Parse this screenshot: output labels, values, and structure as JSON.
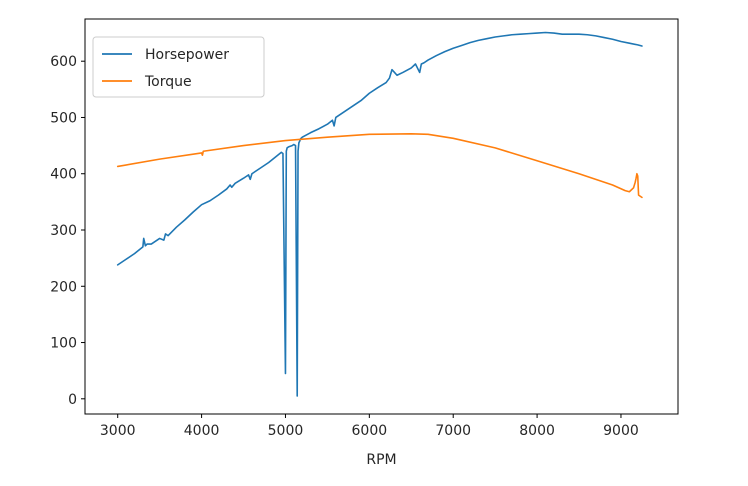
{
  "chart_data": {
    "type": "line",
    "title": "",
    "xlabel": "RPM",
    "ylabel": "",
    "xlim": [
      2610,
      9680
    ],
    "ylim": [
      -27,
      675
    ],
    "xticks": [
      3000,
      4000,
      5000,
      6000,
      7000,
      8000,
      9000
    ],
    "yticks": [
      0,
      100,
      200,
      300,
      400,
      500,
      600
    ],
    "grid": false,
    "legend": "top-left",
    "series": [
      {
        "name": "Horsepower",
        "color": "#1f77b4",
        "x": [
          3000,
          3100,
          3200,
          3300,
          3310,
          3330,
          3350,
          3400,
          3500,
          3550,
          3570,
          3600,
          3700,
          3800,
          3900,
          4000,
          4100,
          4200,
          4300,
          4340,
          4360,
          4400,
          4500,
          4560,
          4580,
          4600,
          4700,
          4800,
          4900,
          4950,
          4970,
          5000,
          5010,
          5020,
          5040,
          5080,
          5100,
          5120,
          5140,
          5150,
          5160,
          5170,
          5180,
          5200,
          5300,
          5400,
          5500,
          5560,
          5580,
          5600,
          5700,
          5800,
          5900,
          6000,
          6100,
          6200,
          6240,
          6270,
          6300,
          6330,
          6400,
          6500,
          6550,
          6600,
          6620,
          6650,
          6700,
          6800,
          6900,
          7000,
          7100,
          7200,
          7300,
          7400,
          7500,
          7600,
          7700,
          7800,
          7900,
          8000,
          8100,
          8200,
          8300,
          8400,
          8500,
          8600,
          8700,
          8800,
          8900,
          9000,
          9100,
          9200,
          9250
        ],
        "y": [
          238,
          248,
          258,
          270,
          285,
          272,
          275,
          275,
          285,
          282,
          293,
          290,
          305,
          318,
          332,
          345,
          352,
          362,
          373,
          380,
          376,
          383,
          392,
          398,
          390,
          400,
          410,
          420,
          432,
          438,
          436,
          45,
          440,
          446,
          448,
          450,
          452,
          450,
          5,
          440,
          455,
          458,
          462,
          465,
          473,
          480,
          488,
          495,
          485,
          500,
          510,
          520,
          530,
          543,
          553,
          562,
          570,
          585,
          580,
          575,
          580,
          588,
          595,
          580,
          595,
          597,
          602,
          610,
          617,
          623,
          628,
          633,
          637,
          640,
          643,
          645,
          647,
          648,
          649,
          650,
          651,
          650,
          648,
          648,
          648,
          647,
          645,
          642,
          639,
          635,
          632,
          629,
          627
        ]
      },
      {
        "name": "Torque",
        "color": "#ff7f0e",
        "x": [
          3000,
          3500,
          4000,
          4010,
          4020,
          4500,
          5000,
          5500,
          6000,
          6500,
          6700,
          7000,
          7500,
          8000,
          8500,
          8900,
          9050,
          9100,
          9150,
          9170,
          9180,
          9190,
          9200,
          9210,
          9250
        ],
        "y": [
          413,
          426,
          437,
          433,
          440,
          450,
          459,
          465,
          470,
          471,
          470,
          463,
          446,
          423,
          400,
          380,
          370,
          368,
          375,
          385,
          392,
          400,
          396,
          362,
          358
        ]
      }
    ]
  }
}
